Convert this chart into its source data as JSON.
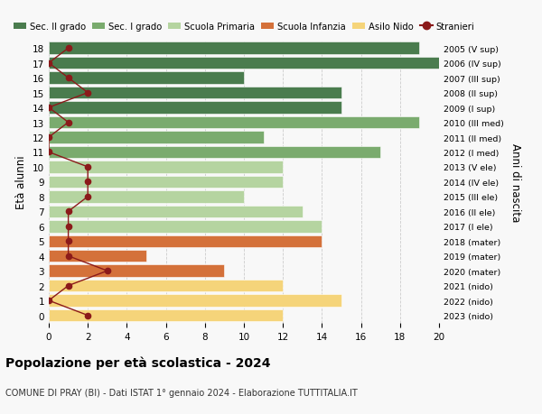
{
  "ages": [
    18,
    17,
    16,
    15,
    14,
    13,
    12,
    11,
    10,
    9,
    8,
    7,
    6,
    5,
    4,
    3,
    2,
    1,
    0
  ],
  "right_labels": [
    "2005 (V sup)",
    "2006 (IV sup)",
    "2007 (III sup)",
    "2008 (II sup)",
    "2009 (I sup)",
    "2010 (III med)",
    "2011 (II med)",
    "2012 (I med)",
    "2013 (V ele)",
    "2014 (IV ele)",
    "2015 (III ele)",
    "2016 (II ele)",
    "2017 (I ele)",
    "2018 (mater)",
    "2019 (mater)",
    "2020 (mater)",
    "2021 (nido)",
    "2022 (nido)",
    "2023 (nido)"
  ],
  "bar_values": [
    19,
    20,
    10,
    15,
    15,
    19,
    11,
    17,
    12,
    12,
    10,
    13,
    14,
    14,
    5,
    9,
    12,
    15,
    12
  ],
  "bar_colors": [
    "#4a7c4e",
    "#4a7c4e",
    "#4a7c4e",
    "#4a7c4e",
    "#4a7c4e",
    "#7aab6e",
    "#7aab6e",
    "#7aab6e",
    "#b5d4a0",
    "#b5d4a0",
    "#b5d4a0",
    "#b5d4a0",
    "#b5d4a0",
    "#d4713a",
    "#d4713a",
    "#d4713a",
    "#f5d47a",
    "#f5d47a",
    "#f5d47a"
  ],
  "stranieri_values": [
    1,
    0,
    1,
    2,
    0,
    1,
    0,
    0,
    2,
    2,
    2,
    1,
    1,
    1,
    1,
    3,
    1,
    0,
    2
  ],
  "stranieri_color": "#8b1a1a",
  "xlim": [
    0,
    20
  ],
  "xticks": [
    0,
    2,
    4,
    6,
    8,
    10,
    12,
    14,
    16,
    18,
    20
  ],
  "ylabel_left": "Età alunni",
  "ylabel_right": "Anni di nascita",
  "title": "Popolazione per età scolastica - 2024",
  "subtitle": "COMUNE DI PRAY (BI) - Dati ISTAT 1° gennaio 2024 - Elaborazione TUTTITALIA.IT",
  "legend_labels": [
    "Sec. II grado",
    "Sec. I grado",
    "Scuola Primaria",
    "Scuola Infanzia",
    "Asilo Nido",
    "Stranieri"
  ],
  "legend_colors": [
    "#4a7c4e",
    "#7aab6e",
    "#b5d4a0",
    "#d4713a",
    "#f5d47a",
    "#8b1a1a"
  ],
  "bg_color": "#f8f8f8",
  "grid_color": "#cccccc"
}
